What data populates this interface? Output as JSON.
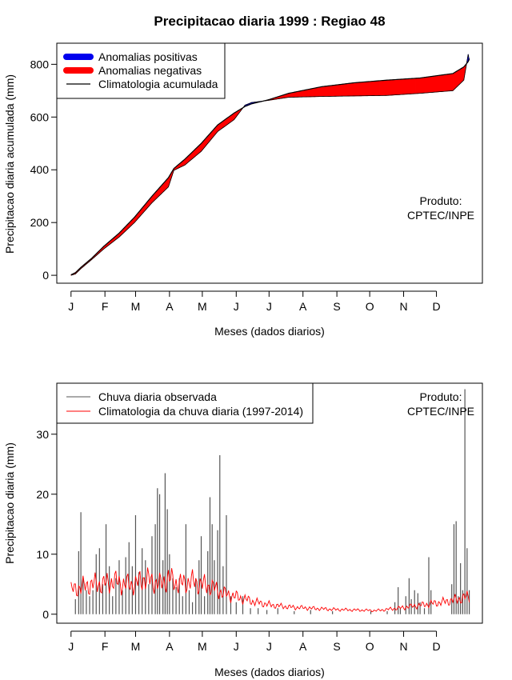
{
  "chart_data": [
    {
      "type": "area",
      "title": "Precipitacao diaria 1999 : Regiao 48",
      "xlabel": "Meses (dados diarios)",
      "ylabel": "Precipitacao diaria acumulada (mm)",
      "x_ticks": [
        "J",
        "F",
        "M",
        "A",
        "M",
        "J",
        "J",
        "A",
        "S",
        "O",
        "N",
        "D"
      ],
      "y_ticks": [
        0,
        200,
        400,
        600,
        800
      ],
      "ylim": [
        -30,
        880
      ],
      "xlim_days": [
        -12,
        377
      ],
      "legend_position": "top-left",
      "legend": [
        "Anomalias positivas",
        "Anomalias negativas",
        "Climatologia acumulada"
      ],
      "credit": [
        "Produto:",
        "CPTEC/INPE"
      ],
      "colors": {
        "positive": "#0000ee",
        "negative": "#ff0000",
        "climatology": "#000000"
      },
      "day_of_year": [
        1,
        5,
        10,
        20,
        31,
        45,
        59,
        75,
        90,
        95,
        105,
        120,
        135,
        150,
        160,
        166,
        181,
        200,
        230,
        260,
        290,
        320,
        350,
        360,
        364,
        365
      ],
      "climatology_accumulated_mm": [
        2,
        10,
        30,
        65,
        110,
        160,
        220,
        300,
        370,
        405,
        440,
        500,
        570,
        615,
        640,
        650,
        665,
        690,
        715,
        730,
        740,
        748,
        765,
        790,
        810,
        822
      ],
      "observed_accumulated_mm": [
        0,
        5,
        25,
        60,
        100,
        145,
        200,
        275,
        335,
        398,
        418,
        470,
        545,
        590,
        645,
        655,
        663,
        675,
        678,
        680,
        682,
        690,
        700,
        740,
        838,
        815
      ]
    },
    {
      "type": "bar",
      "xlabel": "Meses (dados diarios)",
      "ylabel": "Precipitacao diaria (mm)",
      "x_ticks": [
        "J",
        "F",
        "M",
        "A",
        "M",
        "J",
        "J",
        "A",
        "S",
        "O",
        "N",
        "D"
      ],
      "y_ticks": [
        0,
        10,
        20,
        30
      ],
      "ylim": [
        -1.5,
        38.5
      ],
      "xlim_days": [
        -12,
        377
      ],
      "legend_position": "top-left",
      "legend": [
        "Chuva diaria observada",
        "Climatologia da chuva diaria (1997-2014)"
      ],
      "credit": [
        "Produto:",
        "CPTEC/INPE"
      ],
      "colors": {
        "observed": "#555555",
        "climatology": "#ff0000"
      },
      "observed_daily_mm": [
        {
          "day": 5,
          "mm": 2.5
        },
        {
          "day": 8,
          "mm": 10.5
        },
        {
          "day": 10,
          "mm": 17
        },
        {
          "day": 12,
          "mm": 6
        },
        {
          "day": 15,
          "mm": 4
        },
        {
          "day": 18,
          "mm": 3
        },
        {
          "day": 21,
          "mm": 4
        },
        {
          "day": 24,
          "mm": 10
        },
        {
          "day": 27,
          "mm": 11
        },
        {
          "day": 30,
          "mm": 5
        },
        {
          "day": 33,
          "mm": 15
        },
        {
          "day": 36,
          "mm": 8
        },
        {
          "day": 39,
          "mm": 3
        },
        {
          "day": 42,
          "mm": 6
        },
        {
          "day": 45,
          "mm": 9
        },
        {
          "day": 48,
          "mm": 4
        },
        {
          "day": 51,
          "mm": 9.5
        },
        {
          "day": 54,
          "mm": 12
        },
        {
          "day": 57,
          "mm": 8
        },
        {
          "day": 60,
          "mm": 16.5
        },
        {
          "day": 63,
          "mm": 7
        },
        {
          "day": 66,
          "mm": 11
        },
        {
          "day": 69,
          "mm": 9
        },
        {
          "day": 72,
          "mm": 5
        },
        {
          "day": 75,
          "mm": 13
        },
        {
          "day": 78,
          "mm": 15
        },
        {
          "day": 80,
          "mm": 21
        },
        {
          "day": 82,
          "mm": 20
        },
        {
          "day": 85,
          "mm": 9
        },
        {
          "day": 87,
          "mm": 23.5
        },
        {
          "day": 89,
          "mm": 17.5
        },
        {
          "day": 91,
          "mm": 10
        },
        {
          "day": 94,
          "mm": 6
        },
        {
          "day": 97,
          "mm": 4.5
        },
        {
          "day": 100,
          "mm": 6
        },
        {
          "day": 103,
          "mm": 3
        },
        {
          "day": 106,
          "mm": 15
        },
        {
          "day": 109,
          "mm": 4
        },
        {
          "day": 112,
          "mm": 2
        },
        {
          "day": 115,
          "mm": 6
        },
        {
          "day": 118,
          "mm": 9
        },
        {
          "day": 120,
          "mm": 13
        },
        {
          "day": 123,
          "mm": 3
        },
        {
          "day": 126,
          "mm": 10.5
        },
        {
          "day": 128,
          "mm": 19.5
        },
        {
          "day": 130,
          "mm": 15
        },
        {
          "day": 132,
          "mm": 9
        },
        {
          "day": 135,
          "mm": 14
        },
        {
          "day": 137,
          "mm": 26.5
        },
        {
          "day": 140,
          "mm": 8
        },
        {
          "day": 143,
          "mm": 16.5
        },
        {
          "day": 147,
          "mm": 3
        },
        {
          "day": 152,
          "mm": 2
        },
        {
          "day": 158,
          "mm": 3
        },
        {
          "day": 165,
          "mm": 1
        },
        {
          "day": 172,
          "mm": 1
        },
        {
          "day": 180,
          "mm": 0.7
        },
        {
          "day": 190,
          "mm": 1
        },
        {
          "day": 205,
          "mm": 0.5
        },
        {
          "day": 220,
          "mm": 0.7
        },
        {
          "day": 240,
          "mm": 0.5
        },
        {
          "day": 275,
          "mm": 0.5
        },
        {
          "day": 290,
          "mm": 0.5
        },
        {
          "day": 297,
          "mm": 2
        },
        {
          "day": 300,
          "mm": 4.5
        },
        {
          "day": 302,
          "mm": 1
        },
        {
          "day": 307,
          "mm": 3
        },
        {
          "day": 310,
          "mm": 6
        },
        {
          "day": 312,
          "mm": 2.5
        },
        {
          "day": 315,
          "mm": 4
        },
        {
          "day": 318,
          "mm": 3.5
        },
        {
          "day": 320,
          "mm": 2
        },
        {
          "day": 324,
          "mm": 1
        },
        {
          "day": 328,
          "mm": 9.5
        },
        {
          "day": 330,
          "mm": 4
        },
        {
          "day": 349,
          "mm": 5
        },
        {
          "day": 351,
          "mm": 15
        },
        {
          "day": 353,
          "mm": 15.5
        },
        {
          "day": 355,
          "mm": 3
        },
        {
          "day": 357,
          "mm": 8.5
        },
        {
          "day": 359,
          "mm": 4
        },
        {
          "day": 361,
          "mm": 37.5
        },
        {
          "day": 363,
          "mm": 11
        },
        {
          "day": 365,
          "mm": 4
        }
      ],
      "climatology_daily_mm": [
        {
          "day": 1,
          "mm": 4
        },
        {
          "day": 10,
          "mm": 4.5
        },
        {
          "day": 20,
          "mm": 5
        },
        {
          "day": 30,
          "mm": 5
        },
        {
          "day": 40,
          "mm": 5.5
        },
        {
          "day": 50,
          "mm": 5
        },
        {
          "day": 60,
          "mm": 5
        },
        {
          "day": 68,
          "mm": 6
        },
        {
          "day": 75,
          "mm": 5.5
        },
        {
          "day": 82,
          "mm": 5
        },
        {
          "day": 90,
          "mm": 6
        },
        {
          "day": 100,
          "mm": 5
        },
        {
          "day": 110,
          "mm": 5.5
        },
        {
          "day": 120,
          "mm": 5
        },
        {
          "day": 130,
          "mm": 4.5
        },
        {
          "day": 140,
          "mm": 3.5
        },
        {
          "day": 150,
          "mm": 3
        },
        {
          "day": 160,
          "mm": 2.5
        },
        {
          "day": 170,
          "mm": 2
        },
        {
          "day": 185,
          "mm": 1.5
        },
        {
          "day": 200,
          "mm": 1.2
        },
        {
          "day": 220,
          "mm": 1
        },
        {
          "day": 240,
          "mm": 0.8
        },
        {
          "day": 260,
          "mm": 0.7
        },
        {
          "day": 280,
          "mm": 0.6
        },
        {
          "day": 300,
          "mm": 1
        },
        {
          "day": 320,
          "mm": 1.5
        },
        {
          "day": 340,
          "mm": 2
        },
        {
          "day": 355,
          "mm": 2.5
        },
        {
          "day": 365,
          "mm": 3
        }
      ]
    }
  ]
}
